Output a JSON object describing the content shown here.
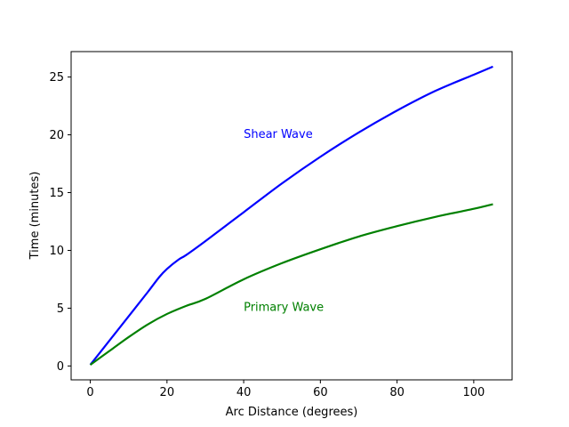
{
  "chart_data": {
    "type": "line",
    "title": "",
    "xlabel": "Arc Distance (degrees)",
    "ylabel": "Time (minutes)",
    "xlim": [
      -5,
      110
    ],
    "ylim": [
      -1.2,
      27.2
    ],
    "xticks": [
      0,
      20,
      40,
      60,
      80,
      100
    ],
    "yticks": [
      0,
      5,
      10,
      15,
      20,
      25
    ],
    "grid": false,
    "series": [
      {
        "name": "Shear Wave",
        "color": "#0000ff",
        "x": [
          0,
          5,
          10,
          15,
          18,
          20,
          23,
          25,
          30,
          40,
          50,
          60,
          70,
          80,
          90,
          100,
          105
        ],
        "y": [
          0.1,
          2.2,
          4.3,
          6.4,
          7.7,
          8.4,
          9.2,
          9.6,
          10.8,
          13.3,
          15.8,
          18.1,
          20.2,
          22.1,
          23.8,
          25.2,
          25.9
        ]
      },
      {
        "name": "Primary Wave",
        "color": "#008000",
        "x": [
          0,
          5,
          10,
          15,
          20,
          25,
          30,
          40,
          50,
          60,
          70,
          80,
          90,
          100,
          105
        ],
        "y": [
          0.1,
          1.3,
          2.5,
          3.6,
          4.5,
          5.2,
          5.8,
          7.5,
          8.9,
          10.1,
          11.2,
          12.1,
          12.9,
          13.6,
          14.0
        ]
      }
    ],
    "annotations": [
      {
        "text": "Shear Wave",
        "x": 40,
        "y": 20.1,
        "color": "#0000ff"
      },
      {
        "text": "Primary Wave",
        "x": 40,
        "y": 5.1,
        "color": "#008000"
      }
    ]
  }
}
